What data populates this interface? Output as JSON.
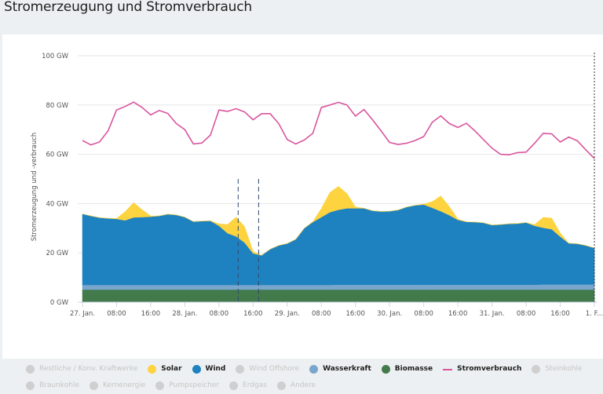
{
  "page": {
    "title": "Stromerzeugung und Stromverbrauch"
  },
  "chart_data": {
    "type": "area",
    "title": "Stromerzeugung und Stromverbrauch",
    "ylabel": "Stromerzeugung und -verbrauch",
    "xlabel": "",
    "ylim": [
      0,
      100
    ],
    "y_unit": "GW",
    "y_ticks": [
      "0 GW",
      "20 GW",
      "40 GW",
      "60 GW",
      "80 GW",
      "100 GW"
    ],
    "y_tick_values": [
      0,
      20,
      40,
      60,
      80,
      100
    ],
    "x_ticks": [
      "27. Jan.",
      "08:00",
      "16:00",
      "28. Jan.",
      "08:00",
      "16:00",
      "29. Jan.",
      "08:00",
      "16:00",
      "30. Jan.",
      "08:00",
      "16:00",
      "31. Jan.",
      "08:00",
      "16:00",
      "1. F..."
    ],
    "x_tick_hours": [
      0,
      8,
      16,
      24,
      32,
      40,
      48,
      56,
      64,
      72,
      80,
      88,
      96,
      104,
      112,
      120
    ],
    "x_range_hours": [
      0,
      120
    ],
    "grid": true,
    "legend_placement": "bottom",
    "x_hours": [
      0,
      2,
      4,
      6,
      8,
      10,
      12,
      14,
      16,
      18,
      20,
      22,
      24,
      26,
      28,
      30,
      32,
      34,
      36,
      38,
      40,
      42,
      44,
      46,
      48,
      50,
      52,
      54,
      56,
      58,
      60,
      62,
      64,
      66,
      68,
      70,
      72,
      74,
      76,
      78,
      80,
      82,
      84,
      86,
      88,
      90,
      92,
      94,
      96,
      98,
      100,
      102,
      104,
      106,
      108,
      110,
      112,
      114,
      116,
      118,
      120
    ],
    "series": [
      {
        "name": "Biomasse",
        "kind": "area",
        "color": "#437a4c",
        "values": [
          5.1,
          5.1,
          5.1,
          5.1,
          5.1,
          5.1,
          5.1,
          5.1,
          5.1,
          5.1,
          5.1,
          5.1,
          5.1,
          5.1,
          5.1,
          5.1,
          5.1,
          5.1,
          5.1,
          5.1,
          5.1,
          5.1,
          5.1,
          5.1,
          5.1,
          5.1,
          5.1,
          5.1,
          5.1,
          5.1,
          5.1,
          5.1,
          5.1,
          5.1,
          5.1,
          5.1,
          5.1,
          5.1,
          5.1,
          5.1,
          5.1,
          5.1,
          5.1,
          5.1,
          5.1,
          5.1,
          5.1,
          5.1,
          5.1,
          5.1,
          5.1,
          5.1,
          5.1,
          5.1,
          5.1,
          5.1,
          5.1,
          5.1,
          5.1,
          5.1,
          5.1
        ]
      },
      {
        "name": "Wasserkraft",
        "kind": "area",
        "color": "#78a6cc",
        "values": [
          1.9,
          1.9,
          1.9,
          1.9,
          1.9,
          1.9,
          1.9,
          1.9,
          1.9,
          1.9,
          1.9,
          1.9,
          1.9,
          1.9,
          1.9,
          1.9,
          1.9,
          1.9,
          1.9,
          1.9,
          1.9,
          1.9,
          1.9,
          1.9,
          1.9,
          1.9,
          1.9,
          1.9,
          1.9,
          1.9,
          2.0,
          2.0,
          2.0,
          2.0,
          2.0,
          2.0,
          2.0,
          2.0,
          2.0,
          2.0,
          2.0,
          2.0,
          2.0,
          2.0,
          2.0,
          2.0,
          2.0,
          2.0,
          2.0,
          2.0,
          2.0,
          2.0,
          2.0,
          2.0,
          2.1,
          2.1,
          2.1,
          2.1,
          2.1,
          2.1,
          2.1
        ]
      },
      {
        "name": "Wind",
        "kind": "area",
        "color": "#1f82c0",
        "values": [
          28.8,
          28.0,
          27.3,
          27.0,
          26.8,
          26.2,
          27.4,
          27.5,
          27.7,
          28.0,
          28.7,
          28.4,
          27.5,
          25.7,
          25.9,
          26.0,
          24.0,
          21.0,
          19.7,
          17.2,
          12.8,
          12.0,
          14.5,
          16.0,
          16.8,
          18.5,
          23.0,
          25.5,
          27.5,
          29.5,
          30.4,
          31.0,
          31.0,
          31.0,
          30.0,
          29.7,
          29.8,
          30.3,
          31.5,
          32.2,
          32.5,
          31.2,
          29.8,
          28.2,
          26.3,
          25.5,
          25.4,
          25.1,
          24.2,
          24.4,
          24.7,
          24.8,
          25.2,
          23.9,
          23.0,
          22.4,
          19.4,
          16.7,
          16.5,
          15.8,
          14.8
        ]
      },
      {
        "name": "Solar",
        "kind": "area",
        "color": "#fdd33f",
        "values": [
          0,
          0,
          0,
          0,
          0.2,
          3.5,
          6.0,
          3.0,
          0.3,
          0,
          0,
          0,
          0,
          0,
          0,
          0,
          0.8,
          3.5,
          7.8,
          6.5,
          0.8,
          0,
          0,
          0,
          0,
          0,
          0,
          0.2,
          3.5,
          8.0,
          9.5,
          6.0,
          0.5,
          0,
          0,
          0,
          0,
          0,
          0,
          0,
          0.2,
          2.5,
          6.2,
          3.5,
          0.3,
          0,
          0,
          0,
          0,
          0,
          0,
          0,
          0,
          0.5,
          4.2,
          4.5,
          1.5,
          0,
          0,
          0,
          0
        ]
      },
      {
        "name": "Stromverbrauch",
        "kind": "line",
        "color": "#d9559e",
        "values": [
          65.6,
          63.8,
          65.0,
          69.5,
          78.0,
          79.4,
          81.2,
          79.0,
          76.0,
          77.8,
          76.6,
          72.5,
          70.0,
          64.2,
          64.6,
          67.8,
          78.0,
          77.4,
          78.5,
          77.2,
          74.0,
          76.5,
          76.5,
          72.5,
          66.0,
          64.2,
          65.8,
          68.5,
          79.0,
          80.0,
          81.1,
          80.0,
          75.5,
          78.2,
          74.0,
          69.5,
          64.8,
          64.0,
          64.5,
          65.6,
          67.2,
          73.0,
          75.6,
          72.5,
          70.9,
          72.6,
          69.5,
          66.0,
          62.5,
          60.0,
          59.8,
          60.7,
          60.9,
          64.5,
          68.5,
          68.3,
          65.0,
          67.0,
          65.5,
          61.8,
          58.3
        ]
      }
    ],
    "reference_lines_hours": [
      36.5,
      41.3
    ],
    "now_line_hour": 120
  },
  "legend": {
    "rows": [
      [
        {
          "label": "Restliche / Konv. Kraftwerke",
          "active": false,
          "shape": "dot",
          "color": "#cfcfcf"
        },
        {
          "label": "Solar",
          "active": true,
          "shape": "dot",
          "color": "#fdd33f"
        },
        {
          "label": "Wind",
          "active": true,
          "shape": "dot",
          "color": "#1f82c0"
        },
        {
          "label": "Wind Offshore",
          "active": false,
          "shape": "dot",
          "color": "#cfcfcf"
        },
        {
          "label": "Wasserkraft",
          "active": true,
          "shape": "dot",
          "color": "#78a6cc"
        },
        {
          "label": "Biomasse",
          "active": true,
          "shape": "dot",
          "color": "#437a4c"
        },
        {
          "label": "Stromverbrauch",
          "active": true,
          "shape": "line",
          "color": "#d9559e"
        },
        {
          "label": "Steinkohle",
          "active": false,
          "shape": "dot",
          "color": "#cfcfcf"
        }
      ],
      [
        {
          "label": "Braunkohle",
          "active": false,
          "shape": "dot",
          "color": "#cfcfcf"
        },
        {
          "label": "Kernenergie",
          "active": false,
          "shape": "dot",
          "color": "#cfcfcf"
        },
        {
          "label": "Pumpspeicher",
          "active": false,
          "shape": "dot",
          "color": "#cfcfcf"
        },
        {
          "label": "Erdgas",
          "active": false,
          "shape": "dot",
          "color": "#cfcfcf"
        },
        {
          "label": "Andere",
          "active": false,
          "shape": "dot",
          "color": "#cfcfcf"
        }
      ]
    ]
  }
}
